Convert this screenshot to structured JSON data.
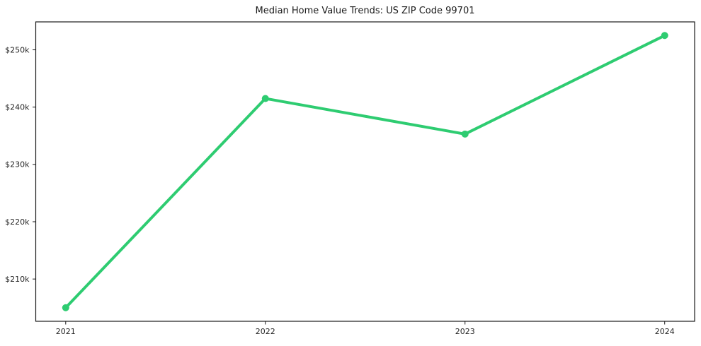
{
  "chart_data": {
    "type": "line",
    "title": "Median Home Value Trends: US ZIP Code 99701",
    "series": [
      {
        "name": "Median Home Value",
        "x": [
          2021,
          2022,
          2023,
          2024
        ],
        "values": [
          205000,
          241500,
          235300,
          252500
        ]
      }
    ],
    "xtick_labels": [
      "2021",
      "2022",
      "2023",
      "2024"
    ],
    "xtick_values": [
      2021,
      2022,
      2023,
      2024
    ],
    "ytick_labels": [
      "$210k",
      "$220k",
      "$230k",
      "$240k",
      "$250k"
    ],
    "ytick_values": [
      210000,
      220000,
      230000,
      240000,
      250000
    ],
    "xlim": [
      2020.85,
      2024.15
    ],
    "ylim": [
      202625,
      254875
    ],
    "xlabel": "",
    "ylabel": "",
    "grid": false,
    "legend_position": "none",
    "line_color": "#2ecc71",
    "marker": "circle",
    "marker_radius": 5,
    "line_width": 4,
    "frame_color": "#1a1a1a",
    "text_color": "#262626",
    "background_color": "#ffffff"
  }
}
